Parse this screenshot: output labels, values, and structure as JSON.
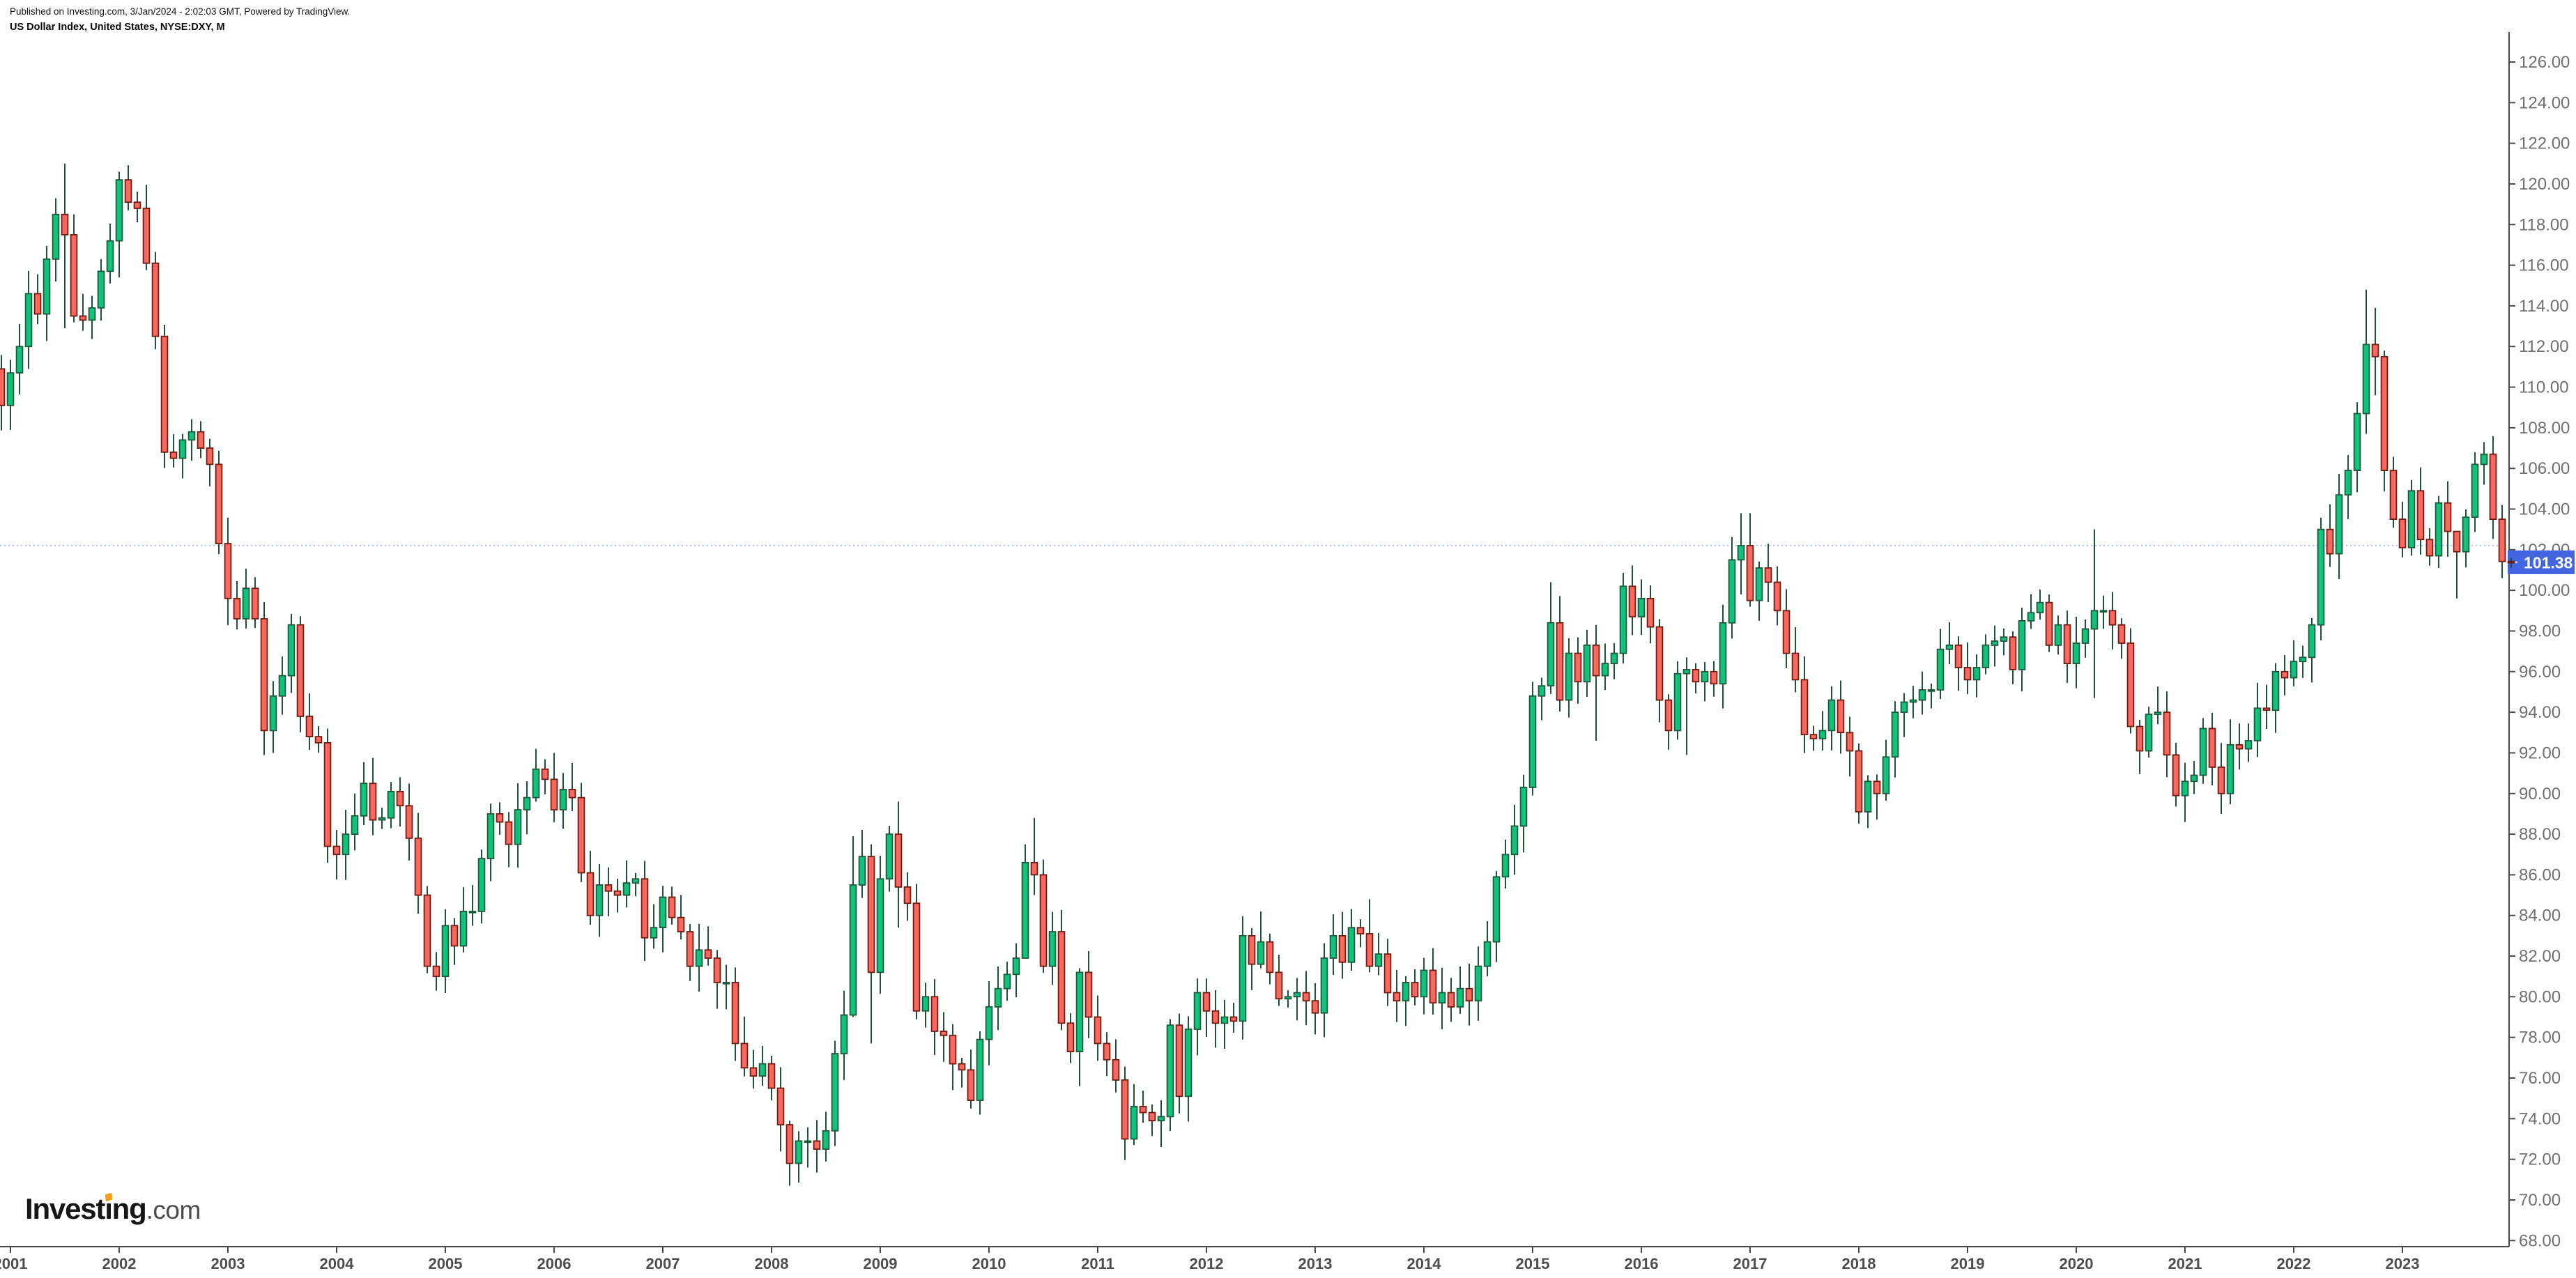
{
  "header": {
    "published": "Published on Investing.com, 3/Jan/2024 - 2:02:03 GMT, Powered by TradingView.",
    "title": "US Dollar Index, United States, NYSE:DXY, M"
  },
  "logo": {
    "pre": "Invest",
    "i": "ı",
    "post": "ng",
    "suffix": ".com"
  },
  "price_scale": {
    "labels": [
      "126.00",
      "124.00",
      "122.00",
      "120.00",
      "118.00",
      "116.00",
      "114.00",
      "112.00",
      "110.00",
      "108.00",
      "106.00",
      "104.00",
      "102.00",
      "100.00",
      "98.00",
      "96.00",
      "94.00",
      "92.00",
      "90.00",
      "88.00",
      "86.00",
      "84.00",
      "82.00",
      "80.00",
      "78.00",
      "76.00",
      "74.00",
      "72.00",
      "70.00",
      "68.00"
    ]
  },
  "time_scale": {
    "years": [
      "2001",
      "2002",
      "2003",
      "2004",
      "2005",
      "2006",
      "2007",
      "2008",
      "2009",
      "2010",
      "2011",
      "2012",
      "2013",
      "2014",
      "2015",
      "2016",
      "2017",
      "2018",
      "2019",
      "2020",
      "2021",
      "2022",
      "2023"
    ]
  },
  "last_price": {
    "value": "101.38"
  },
  "price_line": {
    "price": 102.2
  },
  "colors": {
    "up_fill": "#10c27a",
    "up_border": "#1d5b3c",
    "down_fill": "#f9685e",
    "down_border": "#701c10",
    "wick": "#1d5438",
    "axis_line": "#4a4a4a",
    "price_text": "#6f6f6f",
    "year_text": "#4e4e4e",
    "badge_bg": "#4365e2",
    "badge_text": "#ffffff",
    "badge_tick": "#c3cdf3",
    "price_line": "#a4bff2"
  },
  "chart_data": {
    "type": "candlestick",
    "title": "US Dollar Index, United States, NYSE:DXY, M",
    "symbol": "NYSE:DXY",
    "interval": "M",
    "start_month": "2000-12",
    "first_open": 110.9,
    "ylim": [
      67.7,
      127.4
    ],
    "y_tick_step": 2,
    "grid": false,
    "closes": [
      109.1,
      110.7,
      112.0,
      114.6,
      113.6,
      116.3,
      118.5,
      117.5,
      113.5,
      113.3,
      113.9,
      115.7,
      117.2,
      120.2,
      119.1,
      118.8,
      116.1,
      112.5,
      106.8,
      106.5,
      107.4,
      107.8,
      107.0,
      106.2,
      102.3,
      99.6,
      98.6,
      100.1,
      98.6,
      93.1,
      94.8,
      95.8,
      98.3,
      93.8,
      92.8,
      92.5,
      87.4,
      87.0,
      88.0,
      88.9,
      90.5,
      88.7,
      88.8,
      90.1,
      89.4,
      87.8,
      85.0,
      81.5,
      81.0,
      83.5,
      82.5,
      84.2,
      84.2,
      86.8,
      89.0,
      88.6,
      87.5,
      89.2,
      89.8,
      91.2,
      90.7,
      89.2,
      90.2,
      89.8,
      86.1,
      84.0,
      85.5,
      85.2,
      85.0,
      85.6,
      85.8,
      82.9,
      83.4,
      84.9,
      83.9,
      83.2,
      81.5,
      82.3,
      81.9,
      80.7,
      80.7,
      77.7,
      76.5,
      76.1,
      76.7,
      75.5,
      73.7,
      71.8,
      72.9,
      72.9,
      72.5,
      73.4,
      77.2,
      79.1,
      85.5,
      86.9,
      81.2,
      85.8,
      88.0,
      85.4,
      84.6,
      79.3,
      80.0,
      78.3,
      78.1,
      76.7,
      76.4,
      74.9,
      77.9,
      79.5,
      80.4,
      81.1,
      81.9,
      86.6,
      86.0,
      81.5,
      83.2,
      78.7,
      77.3,
      81.2,
      79.0,
      77.7,
      76.9,
      75.9,
      73.0,
      74.6,
      74.3,
      73.9,
      74.1,
      78.6,
      75.1,
      78.4,
      80.2,
      79.3,
      78.7,
      79.0,
      78.8,
      83.0,
      81.6,
      82.7,
      81.2,
      79.9,
      80.0,
      80.2,
      79.8,
      79.2,
      81.9,
      83.0,
      81.7,
      83.4,
      83.1,
      81.5,
      82.1,
      80.2,
      79.8,
      80.7,
      80.0,
      81.3,
      79.7,
      80.2,
      79.5,
      80.4,
      79.8,
      81.5,
      82.7,
      85.9,
      87.0,
      88.4,
      90.3,
      94.8,
      95.3,
      98.4,
      94.6,
      96.9,
      95.5,
      97.3,
      95.8,
      96.4,
      96.9,
      100.2,
      98.7,
      99.6,
      98.2,
      94.6,
      93.1,
      95.9,
      96.1,
      95.5,
      96.0,
      95.4,
      98.4,
      101.5,
      102.2,
      99.5,
      101.1,
      100.4,
      99.0,
      96.9,
      95.6,
      92.9,
      92.7,
      93.1,
      94.6,
      93.0,
      92.1,
      89.1,
      90.6,
      90.0,
      91.8,
      94.0,
      94.5,
      94.6,
      95.1,
      95.1,
      97.1,
      97.3,
      96.2,
      95.6,
      96.2,
      97.3,
      97.5,
      97.7,
      96.1,
      98.5,
      98.9,
      99.4,
      97.3,
      98.3,
      96.4,
      97.4,
      98.1,
      99.0,
      99.0,
      98.3,
      97.4,
      93.3,
      92.1,
      93.9,
      94.0,
      91.9,
      89.9,
      90.6,
      90.9,
      93.2,
      91.3,
      90.0,
      92.4,
      92.2,
      92.6,
      94.2,
      94.1,
      96.0,
      95.7,
      96.5,
      96.7,
      98.3,
      103.0,
      101.8,
      104.7,
      105.9,
      108.7,
      112.1,
      111.5,
      105.9,
      103.5,
      102.1,
      104.9,
      102.5,
      101.7,
      104.3,
      102.9,
      101.9,
      103.6,
      106.2,
      106.7,
      103.5,
      101.42,
      101.38
    ],
    "hl_overrides": {
      "2001-06": [
        119.3,
        115.2
      ],
      "2001-07": [
        121.0,
        112.9
      ],
      "2002-01": [
        120.6,
        115.4
      ],
      "2004-12": [
        82.2,
        80.3
      ],
      "2005-11": [
        92.2,
        89.6
      ],
      "2008-03": [
        73.9,
        70.7
      ],
      "2008-09": [
        80.3,
        75.9
      ],
      "2008-10": [
        87.9,
        79.0
      ],
      "2008-12": [
        87.5,
        77.7
      ],
      "2009-03": [
        89.6,
        83.4
      ],
      "2009-12": [
        78.3,
        74.2
      ],
      "2010-05": [
        87.5,
        81.9
      ],
      "2010-06": [
        88.8,
        85.0
      ],
      "2010-11": [
        81.4,
        75.6
      ],
      "2011-05": [
        75.7,
        72.7
      ],
      "2012-07": [
        84.2,
        81.4
      ],
      "2013-07": [
        84.8,
        81.2
      ],
      "2015-01": [
        95.5,
        89.9
      ],
      "2015-03": [
        100.4,
        94.9
      ],
      "2015-08": [
        98.3,
        92.6
      ],
      "2016-06": [
        96.7,
        91.9
      ],
      "2016-12": [
        103.8,
        99.8
      ],
      "2017-01": [
        103.8,
        99.2
      ],
      "2018-02": [
        90.9,
        88.3
      ],
      "2020-03": [
        103.0,
        94.7
      ],
      "2022-09": [
        114.8,
        107.7
      ],
      "2022-10": [
        113.9,
        109.6
      ],
      "2023-07": [
        102.9,
        99.6
      ],
      "2023-10": [
        107.3,
        105.2
      ],
      "2023-12": [
        104.2,
        100.6
      ],
      "2024-01": [
        101.6,
        101.1
      ]
    }
  }
}
